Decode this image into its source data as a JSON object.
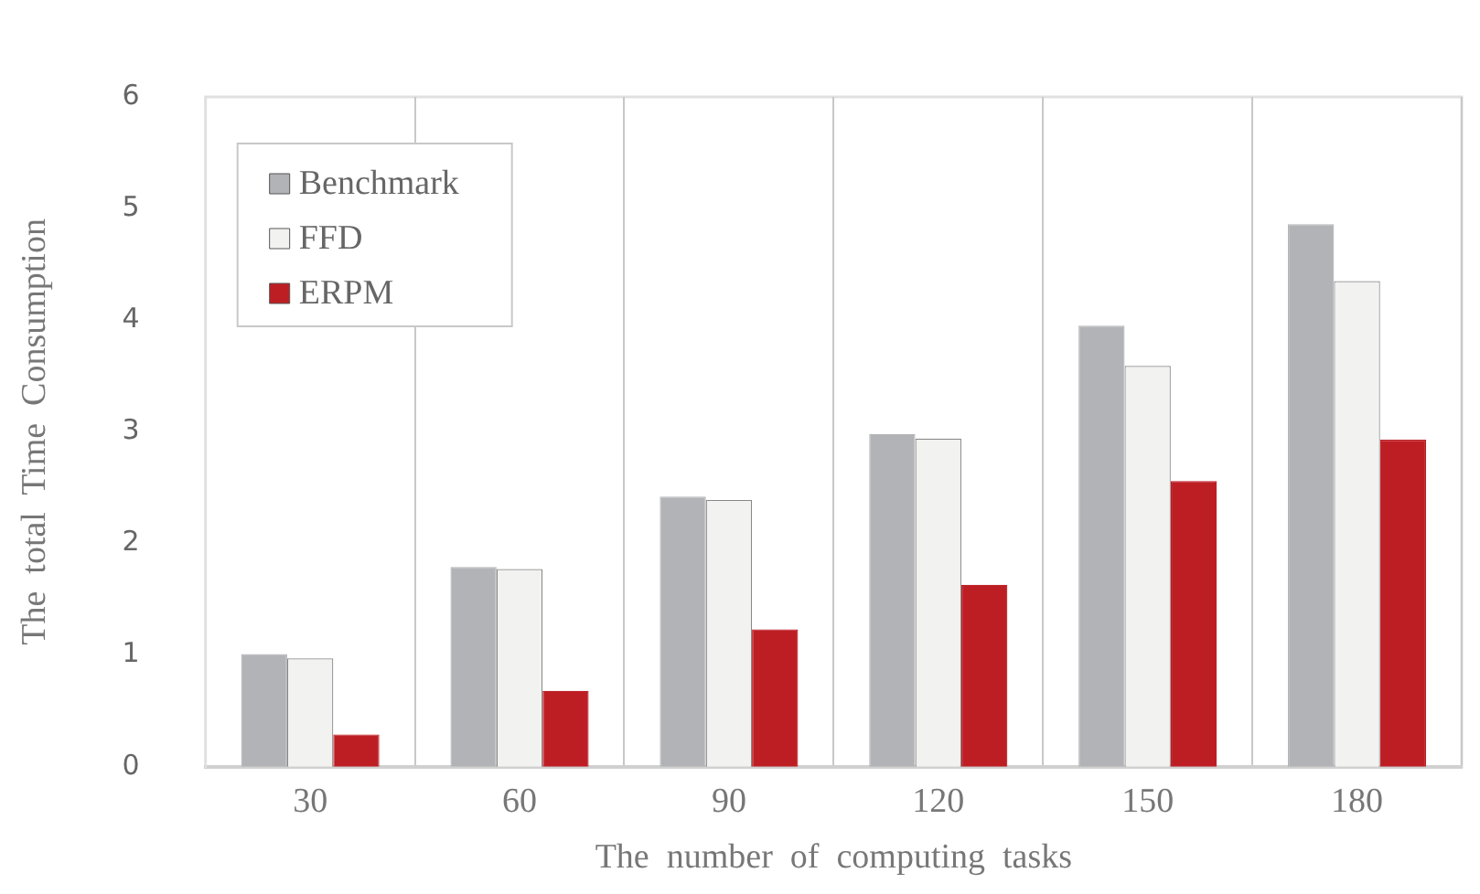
{
  "chart_data": {
    "type": "bar",
    "xlabel": "The  number  of  computing  tasks",
    "ylabel": "The  total  Time  Consumption",
    "categories": [
      "30",
      "60",
      "90",
      "120",
      "150",
      "180"
    ],
    "series": [
      {
        "name": "Benchmark",
        "color": "#b2b3b6",
        "values": [
          1.01,
          1.79,
          2.42,
          2.98,
          3.95,
          4.86
        ]
      },
      {
        "name": "FFD",
        "color": "#f2f3f1",
        "values": [
          0.97,
          1.77,
          2.39,
          2.94,
          3.59,
          4.35
        ]
      },
      {
        "name": "ERPM",
        "color": "#bd1e24",
        "values": [
          0.29,
          0.68,
          1.23,
          1.63,
          2.56,
          2.93
        ]
      }
    ],
    "ylim": [
      0,
      6
    ],
    "yticks": [
      0,
      1,
      2,
      3,
      4,
      5,
      6
    ],
    "grid": "x",
    "legend": "top left"
  }
}
